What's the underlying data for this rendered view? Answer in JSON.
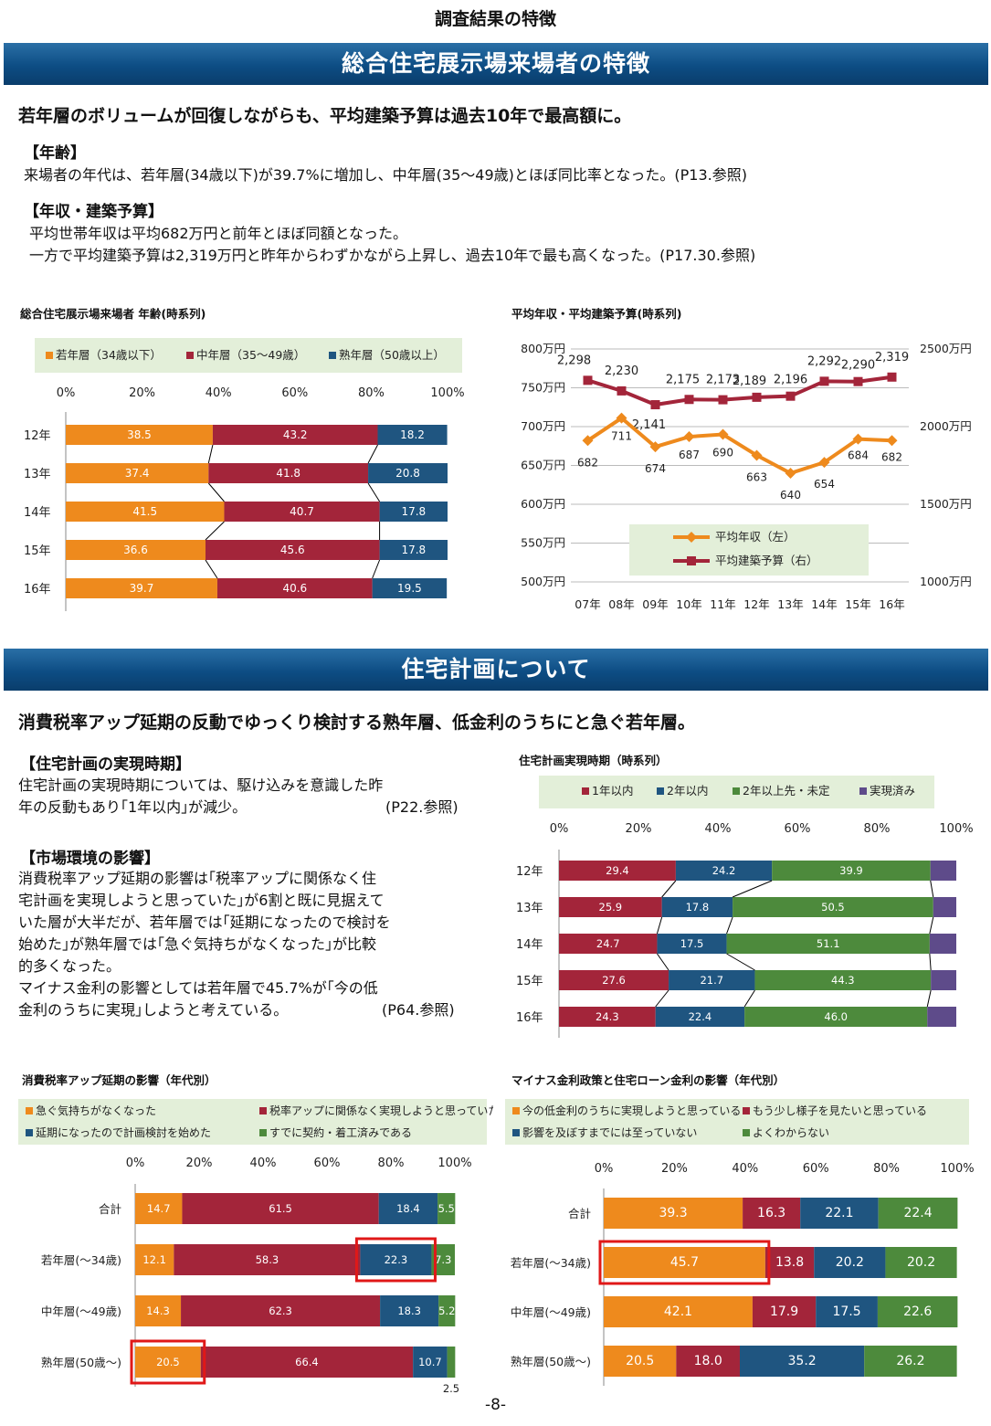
{
  "header": "調査結果の特徴",
  "footer": "-8-",
  "section1": {
    "bar_title": "総合住宅展示場来場者の特徴",
    "lead": "若年層のボリュームが回復しながらも、平均建築予算は過去10年で最高額に。",
    "age_heading": "【年齢】",
    "age_text": "来場者の年代は、若年層(34歳以下)が39.7%に増加し、中年層(35～49歳)とほぼ同比率となった。(P13.参照)",
    "income_heading": "【年収・建築予算】",
    "income_text1": "平均世帯年収は平均682万円と前年とほぼ同額となった。",
    "income_text2": "一方で平均建築予算は2,319万円と昨年からわずかながら上昇し、過去10年で最も高くなった。(P17.30.参照)",
    "chart1_title": "総合住宅展示場来場者 年齢(時系列)",
    "chart2_title": "平均年収・平均建築予算(時系列)"
  },
  "section2": {
    "bar_title": "住宅計画について",
    "lead": "消費税率アップ延期の反動でゆっくり検討する熟年層、低金利のうちにと急ぐ若年層。",
    "timing_heading": "【住宅計画の実現時期】",
    "timing_lines": [
      " 住宅計画の実現時期については、駆け込みを意識した昨",
      "年の反動もあり｢1年以内｣が減少。",
      "(P22.参照)"
    ],
    "market_heading": "【市場環境の影響】",
    "market_lines": [
      " 消費税率アップ延期の影響は｢税率アップに関係なく住",
      "宅計画を実現しようと思っていた｣が6割と既に見据えて",
      "いた層が大半だが、若年層では｢延期になったので検討を",
      "始めた｣が熟年層では｢急ぐ気持ちがなくなった｣が比較",
      "的多くなった。",
      " マイナス金利の影響としては若年層で45.7%が｢今の低",
      "金利のうちに実現｣しようと考えている。",
      "(P64.参照)"
    ],
    "chart3_title": "住宅計画実現時期（時系列）",
    "chart4_title": "消費税率アップ延期の影響（年代別）",
    "chart5_title": "マイナス金利政策と住宅ローン金利の影響（年代別）"
  },
  "colors": {
    "orange": "#ee8a1d",
    "crimson": "#a3253a",
    "blue": "#1f5580",
    "green": "#4d8a3c",
    "purple": "#5e4b8a",
    "legend_bg": "#e3efd9"
  },
  "chart_data": [
    {
      "type": "bar",
      "orientation": "horizontal-stacked-100",
      "categories": [
        "12年",
        "13年",
        "14年",
        "15年",
        "16年"
      ],
      "legend": [
        "若年層（34歳以下）",
        "中年層（35～49歳）",
        "熟年層（50歳以上）"
      ],
      "series": [
        {
          "name": "若年層（34歳以下）",
          "values": [
            38.5,
            37.4,
            41.5,
            36.6,
            39.7
          ]
        },
        {
          "name": "中年層（35～49歳）",
          "values": [
            43.2,
            41.8,
            40.7,
            45.6,
            40.6
          ]
        },
        {
          "name": "熟年層（50歳以上）",
          "values": [
            18.2,
            20.8,
            17.8,
            17.8,
            19.5
          ]
        }
      ],
      "xticks": [
        "0%",
        "20%",
        "40%",
        "60%",
        "80%",
        "100%"
      ],
      "series_lines": true
    },
    {
      "type": "line",
      "categories": [
        "07年",
        "08年",
        "09年",
        "10年",
        "11年",
        "12年",
        "13年",
        "14年",
        "15年",
        "16年"
      ],
      "legend": [
        "平均年収（左）",
        "平均建築予算（右）"
      ],
      "series": [
        {
          "name": "平均年収（左）",
          "axis": "left",
          "values": [
            682,
            711,
            674,
            687,
            690,
            663,
            640,
            654,
            684,
            682
          ]
        },
        {
          "name": "平均建築予算（右）",
          "axis": "right",
          "values": [
            2298,
            2230,
            2141,
            2175,
            2173,
            2189,
            2196,
            2292,
            2290,
            2319
          ]
        }
      ],
      "series_labels": [
        [
          "682",
          "711",
          "674",
          "687",
          "690",
          "663",
          "640",
          "654",
          "684",
          "682"
        ],
        [
          "2,298",
          "2,230",
          "2,141",
          "2,175",
          "2,173",
          "2,189",
          "2,196",
          "2,292",
          "2,290",
          "2,319"
        ]
      ],
      "ylim_left": [
        500,
        800
      ],
      "ylim_right": [
        1000,
        2500
      ],
      "yticks_left": [
        "800万円",
        "750万円",
        "700万円",
        "650万円",
        "600万円",
        "550万円",
        "500万円"
      ],
      "yticks_right": [
        "2500万円",
        "2000万円",
        "1500万円",
        "1000万円"
      ],
      "grid": true
    },
    {
      "type": "bar",
      "orientation": "horizontal-stacked-100",
      "categories": [
        "12年",
        "13年",
        "14年",
        "15年",
        "16年"
      ],
      "legend": [
        "1年以内",
        "2年以内",
        "2年以上先・未定",
        "実現済み"
      ],
      "series": [
        {
          "name": "1年以内",
          "values": [
            29.4,
            25.9,
            24.7,
            27.6,
            24.3
          ]
        },
        {
          "name": "2年以内",
          "values": [
            24.2,
            17.8,
            17.5,
            21.7,
            22.4
          ]
        },
        {
          "name": "2年以上先・未定",
          "values": [
            39.9,
            50.5,
            51.1,
            44.3,
            46.0
          ]
        },
        {
          "name": "実現済み",
          "values": [
            6.5,
            5.8,
            6.7,
            6.4,
            7.3
          ]
        }
      ],
      "labels_shown": [
        [
          "29.4",
          "24.2",
          "39.9",
          ""
        ],
        [
          "25.9",
          "17.8",
          "50.5",
          ""
        ],
        [
          "24.7",
          "17.5",
          "51.1",
          ""
        ],
        [
          "27.6",
          "21.7",
          "44.3",
          ""
        ],
        [
          "24.3",
          "22.4",
          "46.0",
          ""
        ]
      ],
      "xticks": [
        "0%",
        "20%",
        "40%",
        "60%",
        "80%",
        "100%"
      ],
      "series_lines": true
    },
    {
      "type": "bar",
      "orientation": "horizontal-stacked-100",
      "categories": [
        "合計",
        "若年層(～34歳)",
        "中年層(～49歳)",
        "熟年層(50歳～)"
      ],
      "legend": [
        "急ぐ気持ちがなくなった",
        "税率アップに関係なく実現しようと思っていた",
        "延期になったので計画検討を始めた",
        "すでに契約・着工済みである"
      ],
      "series": [
        {
          "name": "急ぐ気持ちがなくなった",
          "values": [
            14.7,
            12.1,
            14.3,
            20.5
          ]
        },
        {
          "name": "税率アップに関係なく実現しようと思っていた",
          "values": [
            61.5,
            58.3,
            62.3,
            66.4
          ]
        },
        {
          "name": "延期になったので計画検討を始めた",
          "values": [
            18.4,
            22.3,
            18.3,
            10.7
          ]
        },
        {
          "name": "すでに契約・着工済みである",
          "values": [
            5.5,
            7.3,
            5.2,
            2.5
          ]
        }
      ],
      "labels_shown": [
        [
          "14.7",
          "61.5",
          "18.4",
          "5.5"
        ],
        [
          "12.1",
          "58.3",
          "22.3",
          "7.3"
        ],
        [
          "14.3",
          "62.3",
          "18.3",
          "5.2"
        ],
        [
          "20.5",
          "66.4",
          "10.7",
          "2.5"
        ]
      ],
      "xticks": [
        "0%",
        "20%",
        "40%",
        "60%",
        "80%",
        "100%"
      ],
      "highlights": [
        {
          "category": "若年層(～34歳)",
          "series": "延期になったので計画検討を始めた"
        },
        {
          "category": "熟年層(50歳～)",
          "series": "急ぐ気持ちがなくなった"
        }
      ]
    },
    {
      "type": "bar",
      "orientation": "horizontal-stacked-100",
      "categories": [
        "合計",
        "若年層(～34歳)",
        "中年層(～49歳)",
        "熟年層(50歳～)"
      ],
      "legend": [
        "今の低金利のうちに実現しようと思っている",
        "もう少し様子を見たいと思っている",
        "影響を及ぼすまでには至っていない",
        "よくわからない"
      ],
      "series": [
        {
          "name": "今の低金利のうちに実現しようと思っている",
          "values": [
            39.3,
            45.7,
            42.1,
            20.5
          ]
        },
        {
          "name": "もう少し様子を見たいと思っている",
          "values": [
            16.3,
            13.8,
            17.9,
            18.0
          ]
        },
        {
          "name": "影響を及ぼすまでには至っていない",
          "values": [
            22.1,
            20.2,
            17.5,
            35.2
          ]
        },
        {
          "name": "よくわからない",
          "values": [
            22.4,
            20.2,
            22.6,
            26.2
          ]
        }
      ],
      "labels_shown": [
        [
          "39.3",
          "16.3",
          "22.1",
          "22.4"
        ],
        [
          "45.7",
          "13.8",
          "20.2",
          "20.2"
        ],
        [
          "42.1",
          "17.9",
          "17.5",
          "22.6"
        ],
        [
          "20.5",
          "18.0",
          "35.2",
          "26.2"
        ]
      ],
      "xticks": [
        "0%",
        "20%",
        "40%",
        "60%",
        "80%",
        "100%"
      ],
      "highlights": [
        {
          "category": "若年層(～34歳)",
          "series": "今の低金利のうちに実現しようと思っている"
        }
      ]
    }
  ]
}
